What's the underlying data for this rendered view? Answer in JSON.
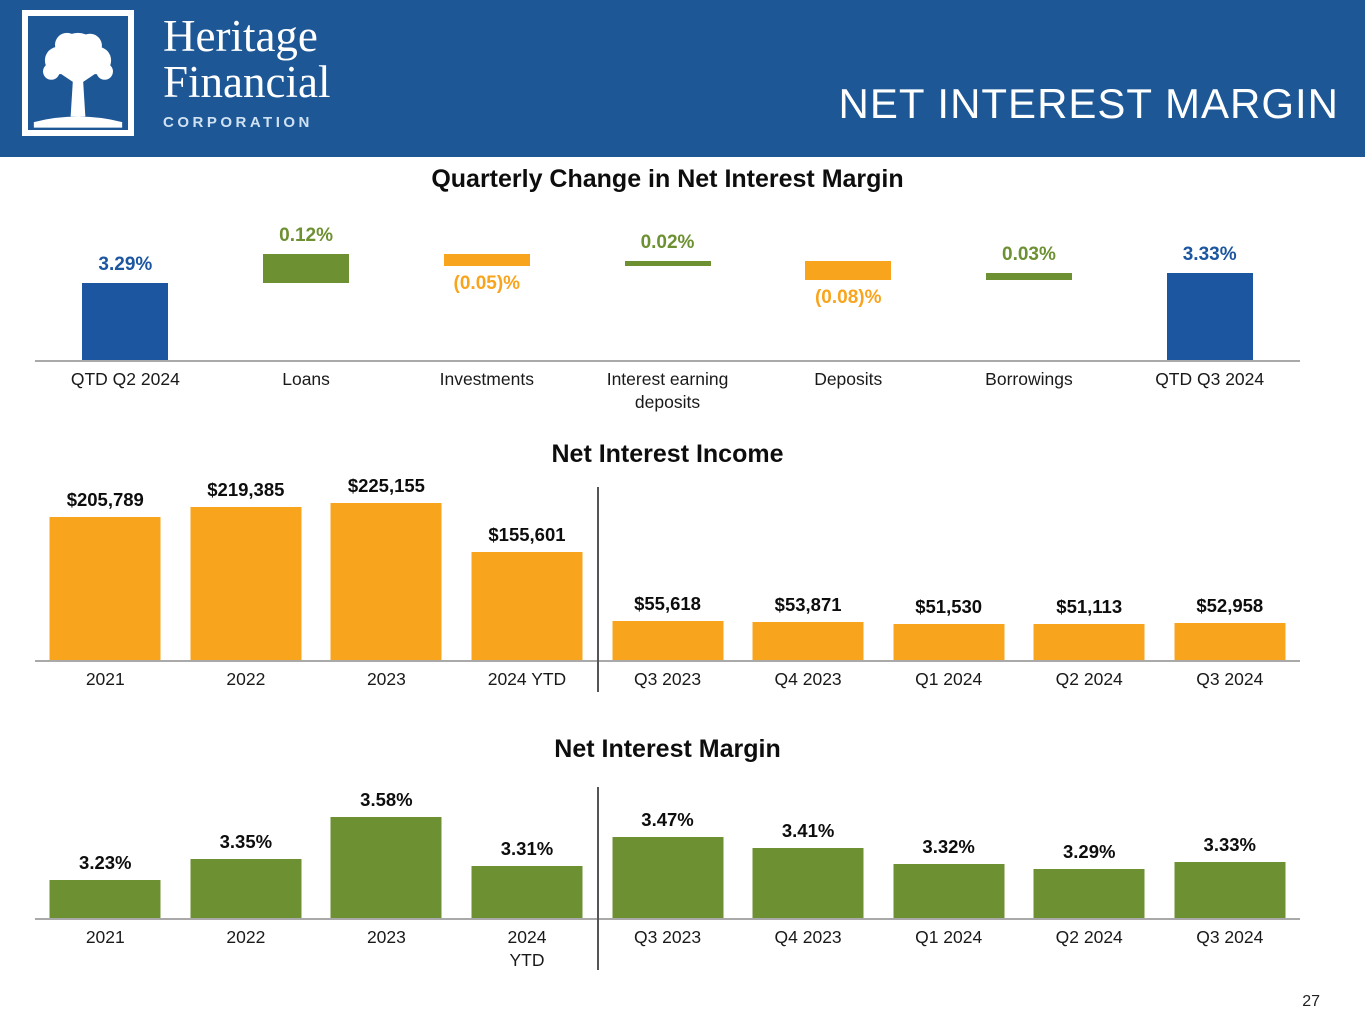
{
  "header": {
    "title": "NET INTEREST MARGIN",
    "brand": {
      "line1": "Heritage",
      "line2": "Financial",
      "line3": "CORPORATION"
    },
    "logo_icon": "tree-icon"
  },
  "page_number": "27",
  "colors": {
    "header_bg": "#1d5796",
    "blue": "#1c56a0",
    "green": "#6d9032",
    "orange": "#f9a41d",
    "axis": "#a9a9a9",
    "divider": "#555555",
    "value_text": "#0d0d0d"
  },
  "chart_data": [
    {
      "type": "bar",
      "subtype": "waterfall",
      "title": "Quarterly Change in Net Interest Margin",
      "unit": "%",
      "axis_min": 2.97,
      "grid": false,
      "bars": [
        {
          "label": "QTD Q2 2024",
          "value": 3.29,
          "value_label": "3.29%",
          "kind": "total",
          "color": "blue"
        },
        {
          "label": "Loans",
          "value": 0.12,
          "value_label": "0.12%",
          "kind": "delta",
          "color": "green"
        },
        {
          "label": "Investments",
          "value": -0.05,
          "value_label": "(0.05)%",
          "kind": "delta",
          "color": "orange"
        },
        {
          "label": "Interest earning\ndeposits",
          "value": 0.02,
          "value_label": "0.02%",
          "kind": "delta",
          "color": "green"
        },
        {
          "label": "Deposits",
          "value": -0.08,
          "value_label": "(0.08)%",
          "kind": "delta",
          "color": "orange"
        },
        {
          "label": "Borrowings",
          "value": 0.03,
          "value_label": "0.03%",
          "kind": "delta",
          "color": "green"
        },
        {
          "label": "QTD Q3 2024",
          "value": 3.33,
          "value_label": "3.33%",
          "kind": "total",
          "color": "blue"
        }
      ]
    },
    {
      "type": "bar",
      "title": "Net Interest Income",
      "categories": [
        "2021",
        "2022",
        "2023",
        "2024 YTD",
        "Q3 2023",
        "Q4 2023",
        "Q1 2024",
        "Q2 2024",
        "Q3 2024"
      ],
      "values": [
        205789,
        219385,
        225155,
        155601,
        55618,
        53871,
        51530,
        51113,
        52958
      ],
      "value_labels": [
        "$205,789",
        "$219,385",
        "$225,155",
        "$155,601",
        "$55,618",
        "$53,871",
        "$51,530",
        "$51,113",
        "$52,958"
      ],
      "divider_after_index": 3,
      "bar_color": "orange",
      "axis_min": 0,
      "grid": false
    },
    {
      "type": "bar",
      "title": "Net Interest Margin",
      "categories": [
        "2021",
        "2022",
        "2023",
        "2024\nYTD",
        "Q3 2023",
        "Q4 2023",
        "Q1 2024",
        "Q2 2024",
        "Q3 2024"
      ],
      "values": [
        3.23,
        3.35,
        3.58,
        3.31,
        3.47,
        3.41,
        3.32,
        3.29,
        3.33
      ],
      "value_labels": [
        "3.23%",
        "3.35%",
        "3.58%",
        "3.31%",
        "3.47%",
        "3.41%",
        "3.32%",
        "3.29%",
        "3.33%"
      ],
      "divider_after_index": 3,
      "bar_color": "green",
      "axis_min": 3.02,
      "grid": false
    }
  ]
}
